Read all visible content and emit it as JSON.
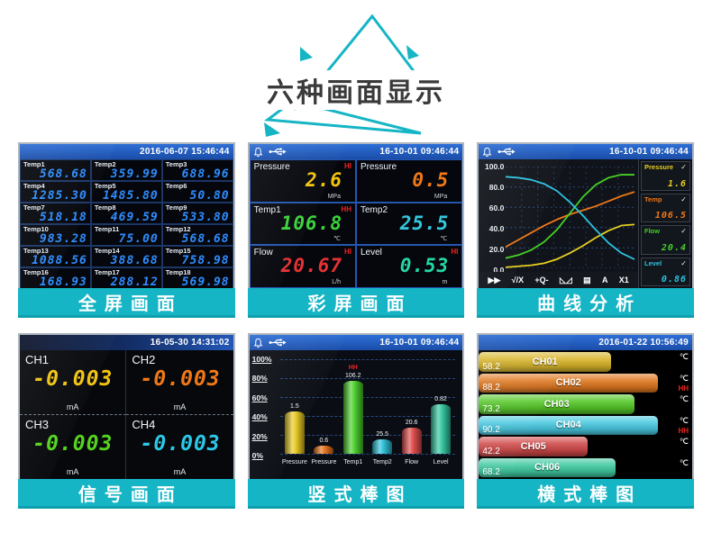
{
  "title": "六种画面显示",
  "panels": {
    "full": {
      "caption": "全屏画面",
      "datetime": "2016-06-07 15:46:44",
      "value_color": "#2e8cff",
      "cells": [
        {
          "label": "Temp1",
          "value": "568.68"
        },
        {
          "label": "Temp2",
          "value": "359.99"
        },
        {
          "label": "Temp3",
          "value": "688.96"
        },
        {
          "label": "Temp4",
          "value": "1285.30"
        },
        {
          "label": "Temp5",
          "value": "1485.80"
        },
        {
          "label": "Temp6",
          "value": "50.80"
        },
        {
          "label": "Temp7",
          "value": "518.18"
        },
        {
          "label": "Temp8",
          "value": "469.59"
        },
        {
          "label": "Temp9",
          "value": "533.80"
        },
        {
          "label": "Temp10",
          "value": "983.28"
        },
        {
          "label": "Temp11",
          "value": "75.00"
        },
        {
          "label": "Temp12",
          "value": "568.68"
        },
        {
          "label": "Temp13",
          "value": "1088.56"
        },
        {
          "label": "Temp14",
          "value": "388.68"
        },
        {
          "label": "Temp15",
          "value": "758.98"
        },
        {
          "label": "Temp16",
          "value": "168.93"
        },
        {
          "label": "Temp17",
          "value": "288.12"
        },
        {
          "label": "Temp18",
          "value": "569.98"
        }
      ]
    },
    "color": {
      "caption": "彩屏画面",
      "datetime": "16-10-01 09:46:44",
      "cells": [
        {
          "label": "Pressure",
          "alarm": "HI",
          "value": "2.6",
          "unit": "MPa",
          "color": "#f2c40f"
        },
        {
          "label": "Pressure",
          "alarm": "",
          "value": "0.5",
          "unit": "MPa",
          "color": "#f07818"
        },
        {
          "label": "Temp1",
          "alarm": "HH",
          "value": "106.8",
          "unit": "℃",
          "color": "#3ad33a"
        },
        {
          "label": "Temp2",
          "alarm": "",
          "value": "25.5",
          "unit": "℃",
          "color": "#35c8dc"
        },
        {
          "label": "Flow",
          "alarm": "HI",
          "value": "20.67",
          "unit": "L/h",
          "color": "#e63232"
        },
        {
          "label": "Level",
          "alarm": "HI",
          "value": "0.53",
          "unit": "m",
          "color": "#23d8a5"
        }
      ]
    },
    "curve": {
      "caption": "曲线分析",
      "datetime": "16-10-01 09:46:44",
      "toolbar": [
        "▶▶",
        "√/X",
        "+Q-",
        "◺◿",
        "▤",
        "A",
        "X1"
      ],
      "legend": [
        {
          "name": "Pressure",
          "check": "✓",
          "value": "1.6",
          "color": "#e8d020"
        },
        {
          "name": "Temp",
          "check": "✓",
          "value": "106.5",
          "color": "#f07818"
        },
        {
          "name": "Flow",
          "check": "✓",
          "value": "20.4",
          "color": "#45d025"
        },
        {
          "name": "Level",
          "check": "✓",
          "value": "0.86",
          "color": "#2ec2e0"
        }
      ],
      "chart_data": {
        "type": "line",
        "ylim": [
          0,
          100
        ],
        "y_ticks": [
          "100.0",
          "80.0",
          "60.0",
          "40.0",
          "20.0",
          "0.0"
        ],
        "grid": "dashed",
        "legend_position": "right",
        "series": [
          {
            "name": "Pressure",
            "color": "#e8d020",
            "values": [
              1,
              2,
              3,
              5,
              9,
              15,
              22,
              30,
              37,
              42,
              43
            ]
          },
          {
            "name": "Temp",
            "color": "#f07818",
            "values": [
              21,
              28,
              35,
              42,
              48,
              53,
              57,
              61,
              66,
              71,
              75
            ]
          },
          {
            "name": "Flow",
            "color": "#45d025",
            "values": [
              10,
              13,
              18,
              26,
              38,
              54,
              70,
              82,
              89,
              92,
              92
            ]
          },
          {
            "name": "Level",
            "color": "#2ec2e0",
            "values": [
              90,
              89,
              87,
              83,
              76,
              65,
              52,
              38,
              25,
              15,
              9
            ]
          }
        ]
      }
    },
    "signal": {
      "caption": "信号画面",
      "datetime": "16-05-30 14:31:02",
      "cells": [
        {
          "label": "CH1",
          "value": "-0.003",
          "unit": "mA",
          "color": "#f2c40f"
        },
        {
          "label": "CH2",
          "value": "-0.003",
          "unit": "mA",
          "color": "#f07818"
        },
        {
          "label": "CH3",
          "value": "-0.003",
          "unit": "mA",
          "color": "#55d41e"
        },
        {
          "label": "CH4",
          "value": "-0.003",
          "unit": "mA",
          "color": "#2bc9e8"
        }
      ]
    },
    "vbar": {
      "caption": "竖式棒图",
      "datetime": "16-10-01 09:46:44",
      "y_ticks": [
        "100%",
        "80%",
        "60%",
        "40%",
        "20%",
        "0%"
      ],
      "chart_data": {
        "type": "bar",
        "categories": [
          "Pressure",
          "Pressure",
          "Temp1",
          "Temp2",
          "Flow",
          "Level"
        ],
        "values": [
          "1.5",
          "0.6",
          "106.2",
          "25.5",
          "20.6",
          "0.82"
        ],
        "percent_heights": [
          45,
          9,
          77,
          15,
          28,
          52
        ],
        "alarms": [
          "",
          "",
          "HH",
          "",
          "",
          ""
        ],
        "colors": [
          "#e8c818",
          "#e87018",
          "#48d028",
          "#28c0d8",
          "#e04848",
          "#30c8a0"
        ],
        "ylim": [
          0,
          100
        ]
      }
    },
    "hbar": {
      "caption": "横式棒图",
      "datetime": "2016-01-22 10:56:49",
      "chart_data": {
        "type": "bar",
        "orientation": "horizontal",
        "categories": [
          "CH01",
          "CH02",
          "CH03",
          "CH04",
          "CH05",
          "CH06"
        ],
        "values": [
          "58.2",
          "88.2",
          "73.2",
          "90.2",
          "42.2",
          "68.2"
        ],
        "units": [
          "℃",
          "℃",
          "℃",
          "℃",
          "℃",
          "℃"
        ],
        "alarms": [
          "",
          "HH",
          "",
          "HH",
          "",
          ""
        ],
        "percent_lengths": [
          62,
          84,
          73,
          84,
          51,
          64
        ],
        "colors": [
          "#d8b428",
          "#e07820",
          "#55c828",
          "#48c8e0",
          "#d04848",
          "#3fc9a0"
        ]
      }
    }
  }
}
